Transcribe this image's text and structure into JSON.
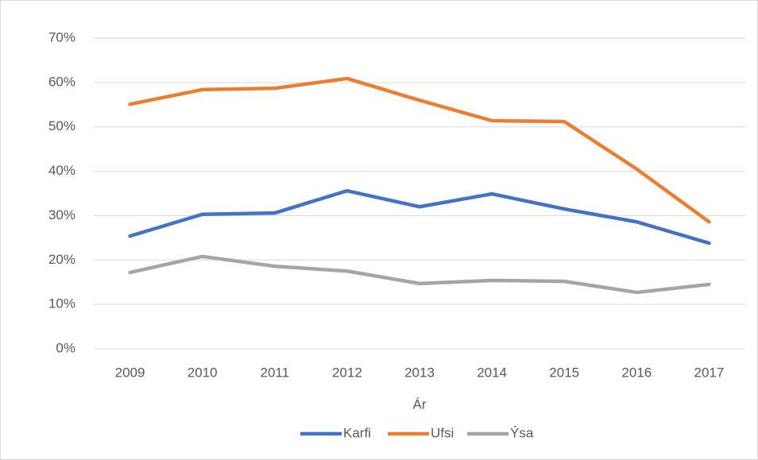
{
  "chart_data": {
    "type": "line",
    "xlabel": "Ár",
    "categories": [
      "2009",
      "2010",
      "2011",
      "2012",
      "2013",
      "2014",
      "2015",
      "2016",
      "2017"
    ],
    "series": [
      {
        "name": "Karfi",
        "color": "#4472c4",
        "values": [
          25.4,
          30.3,
          30.6,
          35.6,
          32.0,
          34.9,
          31.5,
          28.6,
          23.8
        ]
      },
      {
        "name": "Ufsi",
        "color": "#ed7d31",
        "values": [
          55.1,
          58.4,
          58.7,
          60.9,
          56.0,
          51.4,
          51.2,
          40.5,
          28.6
        ]
      },
      {
        "name": "Ýsa",
        "color": "#a5a5a5",
        "values": [
          17.2,
          20.8,
          18.6,
          17.5,
          14.7,
          15.4,
          15.2,
          12.7,
          14.5
        ]
      }
    ],
    "ylim": [
      0,
      70
    ],
    "yticks": [
      {
        "value": 0,
        "label": "0%"
      },
      {
        "value": 10,
        "label": "10%"
      },
      {
        "value": 20,
        "label": "20%"
      },
      {
        "value": 30,
        "label": "30%"
      },
      {
        "value": 40,
        "label": "40%"
      },
      {
        "value": 50,
        "label": "50%"
      },
      {
        "value": 60,
        "label": "60%"
      },
      {
        "value": 70,
        "label": "70%"
      }
    ],
    "grid": true,
    "legend": "bottom"
  }
}
